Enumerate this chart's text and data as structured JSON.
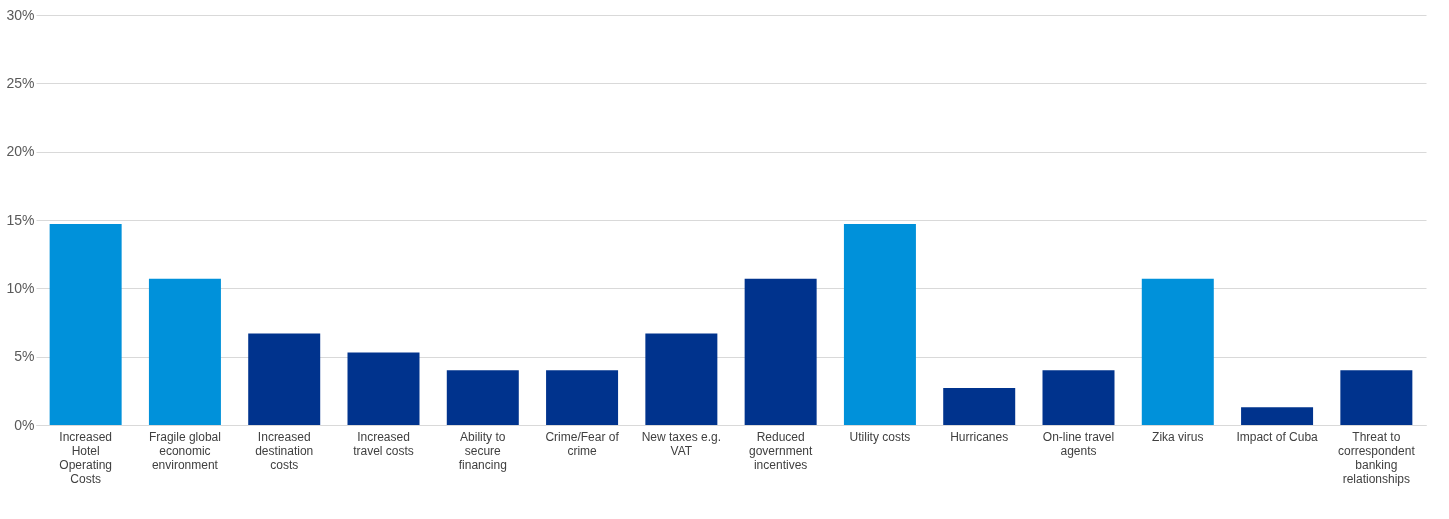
{
  "chart_data": {
    "type": "bar",
    "categories": [
      "Increased Hotel Operating Costs",
      "Fragile global economic environment",
      "Increased destination costs",
      "Increased travel costs",
      "Ability to secure financing",
      "Crime/Fear of crime",
      "New taxes e.g. VAT",
      "Reduced government incentives",
      "Utility costs",
      "Hurricanes",
      "On-line travel agents",
      "Zika virus",
      "Impact of Cuba",
      "Threat to correspondent banking relationships"
    ],
    "values": [
      14.7,
      10.7,
      6.7,
      5.3,
      4.0,
      4.0,
      6.7,
      10.7,
      14.7,
      2.7,
      4.0,
      10.7,
      1.3,
      4.0
    ],
    "colors": [
      "#0091da",
      "#0091da",
      "#00338d",
      "#00338d",
      "#00338d",
      "#00338d",
      "#00338d",
      "#00338d",
      "#0091da",
      "#00338d",
      "#00338d",
      "#0091da",
      "#00338d",
      "#00338d"
    ],
    "ylim": [
      0,
      30
    ],
    "yticks": [
      {
        "value": 0,
        "label": "0%"
      },
      {
        "value": 5,
        "label": "5%"
      },
      {
        "value": 10,
        "label": "10%"
      },
      {
        "value": 15,
        "label": "15%"
      },
      {
        "value": 20,
        "label": "20%"
      },
      {
        "value": 25,
        "label": "25%"
      },
      {
        "value": 30,
        "label": "30%"
      }
    ],
    "grid": "y"
  }
}
